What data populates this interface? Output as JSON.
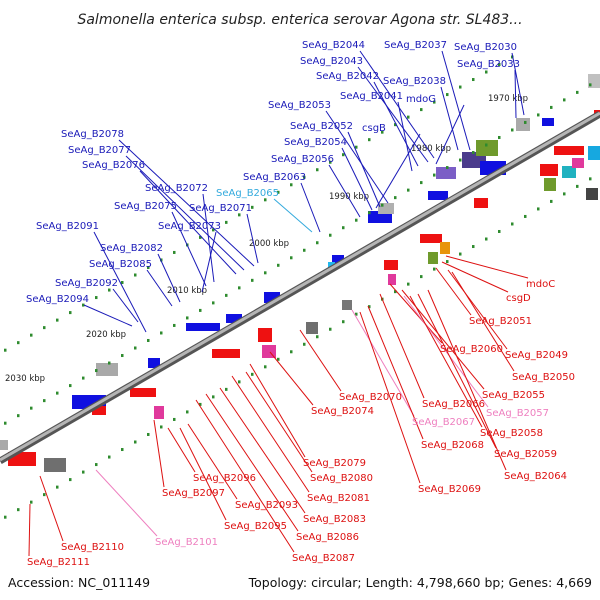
{
  "title": "Salmonella enterica subsp. enterica serovar Agona str. SL483...",
  "footer": {
    "accession": "Accession: NC_011149",
    "summary": "Topology: circular; Length: 4,798,660 bp; Genes: 4,669"
  },
  "colors": {
    "forward_label": "#1a1ab8",
    "reverse_label": "#dd1111",
    "pink_label": "#ee7fbf",
    "cyan_label": "#33aadd",
    "forward_feature": "#1010e0",
    "reverse_feature": "#ee1111",
    "backbone": "#888888",
    "ticks": "#2e8b2e"
  },
  "kbp_labels": [
    "1970 kbp",
    "1980 kbp",
    "1990 kbp",
    "2000 kbp",
    "2010 kbp",
    "2020 kbp",
    "2030 kbp"
  ],
  "labels_top": [
    "SeAg_B2044",
    "SeAg_B2037",
    "SeAg_B2030",
    "SeAg_B2043",
    "SeAg_B2033",
    "SeAg_B2042",
    "SeAg_B2038",
    "SeAg_B2041",
    "mdoG",
    "SeAg_B2053",
    "SeAg_B2052",
    "csgB",
    "SeAg_B2054",
    "SeAg_B2078",
    "SeAg_B2077",
    "SeAg_B2056",
    "SeAg_B2076",
    "SeAg_B2063",
    "SeAg_B2072",
    "SeAg_B2065",
    "SeAg_B2075",
    "SeAg_B2071",
    "SeAg_B2091",
    "SeAg_B2073",
    "SeAg_B2082",
    "SeAg_B2085",
    "SeAg_B2092",
    "SeAg_B2094"
  ],
  "labels_bottom": [
    "mdoC",
    "csgD",
    "SeAg_B2051",
    "SeAg_B2060",
    "SeAg_B2049",
    "SeAg_B2050",
    "SeAg_B2055",
    "SeAg_B2070",
    "SeAg_B2066",
    "SeAg_B2074",
    "SeAg_B2057",
    "SeAg_B2067",
    "SeAg_B2058",
    "SeAg_B2068",
    "SeAg_B2059",
    "SeAg_B2079",
    "SeAg_B2064",
    "SeAg_B2080",
    "SeAg_B2096",
    "SeAg_B2069",
    "SeAg_B2097",
    "SeAg_B2081",
    "SeAg_B2093",
    "SeAg_B2083",
    "SeAg_B2095",
    "SeAg_B2086",
    "SeAg_B2101",
    "SeAg_B2110",
    "SeAg_B2087",
    "SeAg_B2111"
  ]
}
